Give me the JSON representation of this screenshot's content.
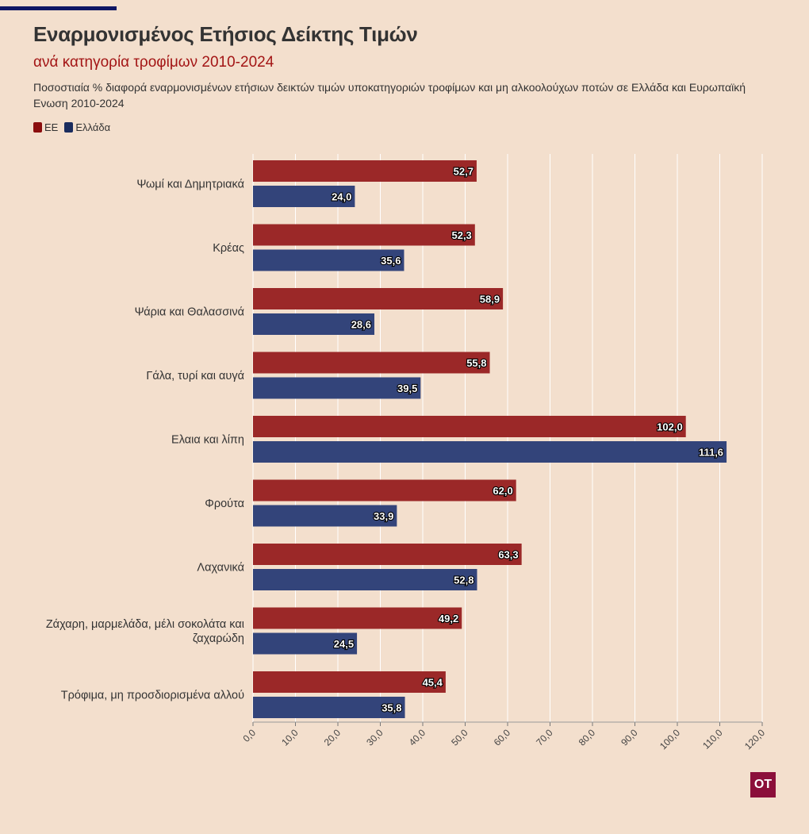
{
  "header": {
    "title": "Εναρμονισμένος Ετήσιος Δείκτης Τιμών",
    "subtitle": "ανά κατηγορία τροφίμων 2010-2024",
    "description": "Ποσοστιαία % διαφορά εναρμονισμένων ετήσιων δεικτών τιμών υποκατηγοριών τροφίμων και μη αλκοολούχων ποτών σε Ελλάδα και Ευρωπαϊκή Ενωση 2010-2024"
  },
  "legend": [
    {
      "label": "ΕΕ",
      "color": "#8b0e0e"
    },
    {
      "label": "Ελλάδα",
      "color": "#1a2c5e"
    }
  ],
  "logo": {
    "text": "OT",
    "color": "#8b0f3a"
  },
  "colors": {
    "eu_bar": "#9b2828",
    "gr_bar": "#33447a",
    "gridline": "#ffffff"
  },
  "chart_data": {
    "type": "bar",
    "orientation": "horizontal",
    "categories": [
      [
        "Ψωμί και Δημητριακά"
      ],
      [
        "Κρέας"
      ],
      [
        "Ψάρια και Θαλασσινά"
      ],
      [
        "Γάλα, τυρί και αυγά"
      ],
      [
        "Ελαια και λίπη"
      ],
      [
        "Φρούτα"
      ],
      [
        "Λαχανικά"
      ],
      [
        "Ζάχαρη, μαρμελάδα, μέλι σοκολάτα και",
        "ζαχαρώδη"
      ],
      [
        "Τρόφιμα, μη προσδιορισμένα αλλού"
      ]
    ],
    "series": [
      {
        "name": "ΕΕ",
        "values": [
          52.7,
          52.3,
          58.9,
          55.8,
          102.0,
          62.0,
          63.3,
          49.2,
          45.4
        ]
      },
      {
        "name": "Ελλάδα",
        "values": [
          24.0,
          35.6,
          28.6,
          39.5,
          111.6,
          33.9,
          52.8,
          24.5,
          35.8
        ]
      }
    ],
    "xlim": [
      0,
      120
    ],
    "xticks": [
      0,
      10,
      20,
      30,
      40,
      50,
      60,
      70,
      80,
      90,
      100,
      110,
      120
    ],
    "tick_labels": [
      "0,0",
      "10,0",
      "20,0",
      "30,0",
      "40,0",
      "50,0",
      "60,0",
      "70,0",
      "80,0",
      "90,0",
      "100,0",
      "110,0",
      "120,0"
    ],
    "data_labels": [
      [
        "52,7",
        "52,3",
        "58,9",
        "55,8",
        "102,0",
        "62,0",
        "63,3",
        "49,2",
        "45,4"
      ],
      [
        "24,0",
        "35,6",
        "28,6",
        "39,5",
        "111,6",
        "33,9",
        "52,8",
        "24,5",
        "35,8"
      ]
    ],
    "grid": true,
    "legend_position": "top-left"
  }
}
